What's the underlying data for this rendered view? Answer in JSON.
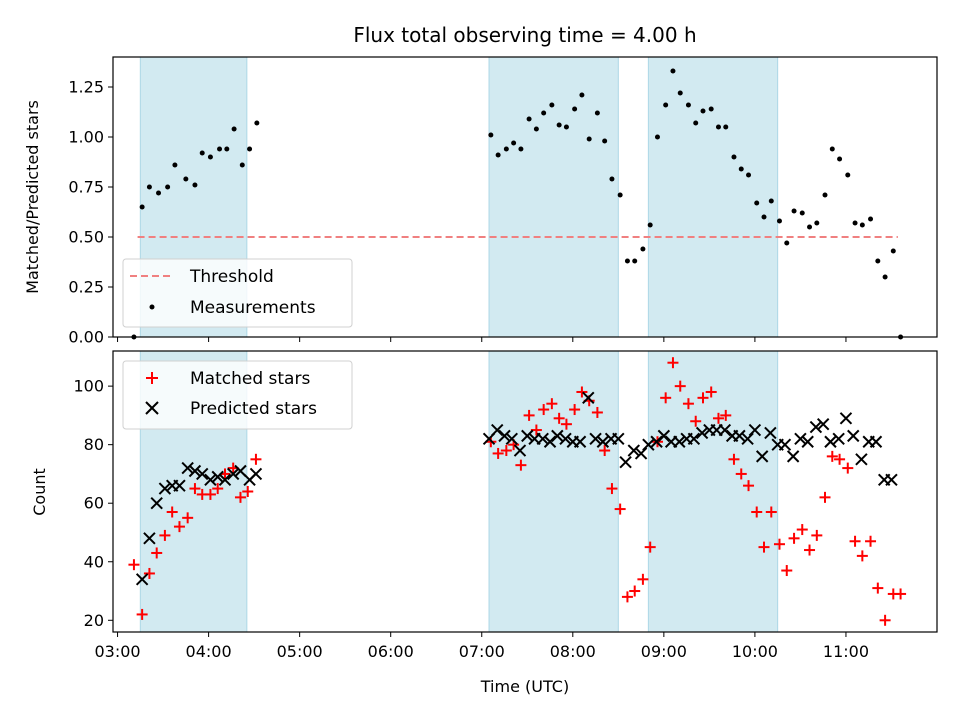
{
  "chart_data": {
    "type": "scatter",
    "title": "Flux total observing time = 4.00 h",
    "xlabel": "Time (UTC)",
    "x_ticks": [
      "03:00",
      "04:00",
      "05:00",
      "06:00",
      "07:00",
      "08:00",
      "09:00",
      "10:00",
      "11:00"
    ],
    "x_tick_hours": [
      3,
      4,
      5,
      6,
      7,
      8,
      9,
      10,
      11
    ],
    "xlim": [
      2.95,
      12.0
    ],
    "shaded_intervals": [
      [
        3.25,
        4.42
      ],
      [
        7.08,
        8.5
      ],
      [
        8.83,
        10.25
      ]
    ],
    "shade_color": "#add8e6",
    "panels": [
      {
        "ylabel": "Matched/Predicted stars",
        "ylim": [
          0,
          1.4
        ],
        "y_ticks": [
          "0.00",
          "0.25",
          "0.50",
          "0.75",
          "1.00",
          "1.25"
        ],
        "y_tick_values": [
          0,
          0.25,
          0.5,
          0.75,
          1.0,
          1.25
        ],
        "threshold": {
          "name": "Threshold",
          "value": 0.5,
          "x_range": [
            3.22,
            11.57
          ],
          "color": "#f08080"
        },
        "series": [
          {
            "name": "Measurements",
            "color": "#000000",
            "marker": "dot",
            "points": [
              [
                3.18,
                0.0
              ],
              [
                3.27,
                0.65
              ],
              [
                3.35,
                0.75
              ],
              [
                3.45,
                0.72
              ],
              [
                3.55,
                0.75
              ],
              [
                3.63,
                0.86
              ],
              [
                3.75,
                0.79
              ],
              [
                3.85,
                0.76
              ],
              [
                3.93,
                0.92
              ],
              [
                4.02,
                0.9
              ],
              [
                4.12,
                0.94
              ],
              [
                4.2,
                0.94
              ],
              [
                4.28,
                1.04
              ],
              [
                4.37,
                0.86
              ],
              [
                4.45,
                0.94
              ],
              [
                4.53,
                1.07
              ],
              [
                7.1,
                1.01
              ],
              [
                7.18,
                0.91
              ],
              [
                7.27,
                0.94
              ],
              [
                7.35,
                0.97
              ],
              [
                7.43,
                0.94
              ],
              [
                7.52,
                1.09
              ],
              [
                7.6,
                1.04
              ],
              [
                7.68,
                1.12
              ],
              [
                7.77,
                1.16
              ],
              [
                7.85,
                1.06
              ],
              [
                7.93,
                1.05
              ],
              [
                8.02,
                1.14
              ],
              [
                8.1,
                1.21
              ],
              [
                8.18,
                0.99
              ],
              [
                8.27,
                1.12
              ],
              [
                8.35,
                0.98
              ],
              [
                8.43,
                0.79
              ],
              [
                8.52,
                0.71
              ],
              [
                8.6,
                0.38
              ],
              [
                8.68,
                0.38
              ],
              [
                8.77,
                0.44
              ],
              [
                8.85,
                0.56
              ],
              [
                8.93,
                1.0
              ],
              [
                9.02,
                1.16
              ],
              [
                9.1,
                1.33
              ],
              [
                9.18,
                1.22
              ],
              [
                9.27,
                1.16
              ],
              [
                9.35,
                1.07
              ],
              [
                9.43,
                1.13
              ],
              [
                9.52,
                1.14
              ],
              [
                9.6,
                1.05
              ],
              [
                9.68,
                1.05
              ],
              [
                9.77,
                0.9
              ],
              [
                9.85,
                0.84
              ],
              [
                9.93,
                0.81
              ],
              [
                10.02,
                0.67
              ],
              [
                10.1,
                0.6
              ],
              [
                10.18,
                0.68
              ],
              [
                10.27,
                0.58
              ],
              [
                10.35,
                0.47
              ],
              [
                10.43,
                0.63
              ],
              [
                10.52,
                0.62
              ],
              [
                10.6,
                0.55
              ],
              [
                10.68,
                0.57
              ],
              [
                10.77,
                0.71
              ],
              [
                10.85,
                0.94
              ],
              [
                10.93,
                0.89
              ],
              [
                11.02,
                0.81
              ],
              [
                11.1,
                0.57
              ],
              [
                11.18,
                0.56
              ],
              [
                11.27,
                0.59
              ],
              [
                11.35,
                0.38
              ],
              [
                11.43,
                0.3
              ],
              [
                11.52,
                0.43
              ],
              [
                11.6,
                0.0
              ]
            ]
          }
        ]
      },
      {
        "ylabel": "Count",
        "ylim": [
          16,
          112
        ],
        "y_ticks": [
          "20",
          "40",
          "60",
          "80",
          "100"
        ],
        "y_tick_values": [
          20,
          40,
          60,
          80,
          100
        ],
        "series": [
          {
            "name": "Matched stars",
            "color": "#ff0000",
            "marker": "plus",
            "points": [
              [
                3.18,
                39
              ],
              [
                3.27,
                22
              ],
              [
                3.35,
                36
              ],
              [
                3.43,
                43
              ],
              [
                3.52,
                49
              ],
              [
                3.6,
                57
              ],
              [
                3.68,
                52
              ],
              [
                3.77,
                55
              ],
              [
                3.85,
                65
              ],
              [
                3.93,
                63
              ],
              [
                4.02,
                63
              ],
              [
                4.1,
                65
              ],
              [
                4.18,
                70
              ],
              [
                4.27,
                72
              ],
              [
                4.35,
                62
              ],
              [
                4.43,
                64
              ],
              [
                4.52,
                75
              ],
              [
                7.1,
                81
              ],
              [
                7.18,
                77
              ],
              [
                7.27,
                78
              ],
              [
                7.35,
                80
              ],
              [
                7.43,
                73
              ],
              [
                7.52,
                90
              ],
              [
                7.6,
                85
              ],
              [
                7.68,
                92
              ],
              [
                7.77,
                94
              ],
              [
                7.85,
                89
              ],
              [
                7.93,
                87
              ],
              [
                8.02,
                92
              ],
              [
                8.1,
                98
              ],
              [
                8.18,
                95
              ],
              [
                8.27,
                91
              ],
              [
                8.35,
                78
              ],
              [
                8.43,
                65
              ],
              [
                8.52,
                58
              ],
              [
                8.6,
                28
              ],
              [
                8.68,
                30
              ],
              [
                8.77,
                34
              ],
              [
                8.85,
                45
              ],
              [
                8.93,
                81
              ],
              [
                9.02,
                96
              ],
              [
                9.1,
                108
              ],
              [
                9.18,
                100
              ],
              [
                9.27,
                94
              ],
              [
                9.35,
                88
              ],
              [
                9.43,
                96
              ],
              [
                9.52,
                98
              ],
              [
                9.6,
                89
              ],
              [
                9.68,
                90
              ],
              [
                9.77,
                75
              ],
              [
                9.85,
                70
              ],
              [
                9.93,
                66
              ],
              [
                10.02,
                57
              ],
              [
                10.1,
                45
              ],
              [
                10.18,
                57
              ],
              [
                10.27,
                46
              ],
              [
                10.35,
                37
              ],
              [
                10.43,
                48
              ],
              [
                10.52,
                51
              ],
              [
                10.6,
                44
              ],
              [
                10.68,
                49
              ],
              [
                10.77,
                62
              ],
              [
                10.85,
                76
              ],
              [
                10.93,
                75
              ],
              [
                11.02,
                72
              ],
              [
                11.1,
                47
              ],
              [
                11.18,
                42
              ],
              [
                11.27,
                47
              ],
              [
                11.35,
                31
              ],
              [
                11.43,
                20
              ],
              [
                11.52,
                29
              ],
              [
                11.6,
                29
              ]
            ]
          },
          {
            "name": "Predicted stars",
            "color": "#000000",
            "marker": "x",
            "points": [
              [
                3.27,
                34
              ],
              [
                3.35,
                48
              ],
              [
                3.43,
                60
              ],
              [
                3.52,
                65
              ],
              [
                3.6,
                66
              ],
              [
                3.68,
                66
              ],
              [
                3.77,
                72
              ],
              [
                3.85,
                71
              ],
              [
                3.93,
                70
              ],
              [
                4.02,
                68
              ],
              [
                4.1,
                69
              ],
              [
                4.18,
                68
              ],
              [
                4.27,
                70
              ],
              [
                4.35,
                71
              ],
              [
                4.45,
                68
              ],
              [
                4.52,
                70
              ],
              [
                7.08,
                82
              ],
              [
                7.17,
                85
              ],
              [
                7.25,
                83
              ],
              [
                7.33,
                82
              ],
              [
                7.42,
                78
              ],
              [
                7.5,
                83
              ],
              [
                7.58,
                82
              ],
              [
                7.67,
                82
              ],
              [
                7.75,
                81
              ],
              [
                7.83,
                83
              ],
              [
                7.92,
                82
              ],
              [
                8.0,
                81
              ],
              [
                8.08,
                81
              ],
              [
                8.17,
                96
              ],
              [
                8.25,
                82
              ],
              [
                8.33,
                81
              ],
              [
                8.42,
                82
              ],
              [
                8.5,
                82
              ],
              [
                8.58,
                74
              ],
              [
                8.67,
                78
              ],
              [
                8.75,
                77
              ],
              [
                8.83,
                80
              ],
              [
                8.92,
                81
              ],
              [
                9.0,
                83
              ],
              [
                9.08,
                81
              ],
              [
                9.17,
                81
              ],
              [
                9.25,
                82
              ],
              [
                9.33,
                82
              ],
              [
                9.42,
                84
              ],
              [
                9.5,
                85
              ],
              [
                9.58,
                85
              ],
              [
                9.67,
                85
              ],
              [
                9.75,
                83
              ],
              [
                9.83,
                83
              ],
              [
                9.92,
                82
              ],
              [
                10.0,
                85
              ],
              [
                10.08,
                76
              ],
              [
                10.17,
                84
              ],
              [
                10.25,
                80
              ],
              [
                10.33,
                80
              ],
              [
                10.42,
                76
              ],
              [
                10.5,
                82
              ],
              [
                10.58,
                81
              ],
              [
                10.67,
                86
              ],
              [
                10.75,
                87
              ],
              [
                10.83,
                81
              ],
              [
                10.92,
                82
              ],
              [
                11.0,
                89
              ],
              [
                11.08,
                83
              ],
              [
                11.17,
                75
              ],
              [
                11.25,
                81
              ],
              [
                11.33,
                81
              ],
              [
                11.42,
                68
              ],
              [
                11.5,
                68
              ]
            ]
          }
        ]
      }
    ],
    "legends": [
      {
        "placement": "lower-left",
        "entries": [
          "Threshold",
          "Measurements"
        ]
      },
      {
        "placement": "upper-left",
        "entries": [
          "Matched stars",
          "Predicted stars"
        ]
      }
    ]
  }
}
